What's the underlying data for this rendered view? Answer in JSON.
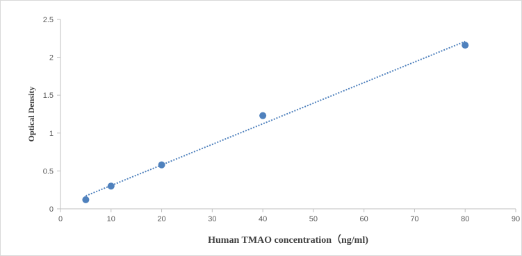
{
  "chart_data": {
    "type": "scatter",
    "title": "",
    "xlabel": "Human TMAO concentration（ng/ml)",
    "ylabel": "Optical Density",
    "xlim": [
      0,
      90
    ],
    "ylim": [
      0,
      2.5
    ],
    "x_ticks": [
      "0",
      "10",
      "20",
      "30",
      "40",
      "50",
      "60",
      "70",
      "80",
      "90"
    ],
    "y_ticks": [
      "0",
      "0.5",
      "1",
      "1.5",
      "2",
      "2.5"
    ],
    "grid": false,
    "legend": "none",
    "series": [
      {
        "points": [
          {
            "x": 5,
            "y": 0.12
          },
          {
            "x": 10,
            "y": 0.3
          },
          {
            "x": 20,
            "y": 0.58
          },
          {
            "x": 40,
            "y": 1.23
          },
          {
            "x": 80,
            "y": 2.16
          }
        ],
        "color": "#4f81bd"
      }
    ],
    "trendline": {
      "type": "linear",
      "style": "dotted",
      "color": "#4f81bd",
      "x_range": [
        5,
        80
      ]
    },
    "axis_color": "#bfbfbf"
  }
}
